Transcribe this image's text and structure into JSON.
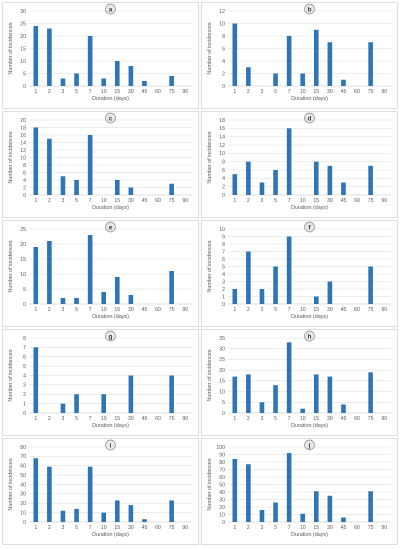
{
  "chart_data": [
    {
      "type": "bar",
      "panel_label": "a",
      "categories": [
        "1",
        "2",
        "3",
        "5",
        "7",
        "10",
        "15",
        "30",
        "45",
        "60",
        "75",
        "90"
      ],
      "values": [
        24,
        23,
        3,
        5,
        20,
        3,
        10,
        8,
        2,
        0,
        4,
        0
      ],
      "ylim": [
        0,
        30
      ],
      "yticks": [
        0,
        5,
        10,
        15,
        20,
        25,
        30
      ],
      "xlabel": "Duration (days)",
      "ylabel": "Number of incidences",
      "color": "#2e75b6"
    },
    {
      "type": "bar",
      "panel_label": "b",
      "categories": [
        "1",
        "2",
        "3",
        "5",
        "7",
        "10",
        "15",
        "30",
        "45",
        "60",
        "75",
        "90"
      ],
      "values": [
        10,
        3,
        0,
        2,
        8,
        2,
        9,
        7,
        1,
        0,
        7,
        0
      ],
      "ylim": [
        0,
        12
      ],
      "yticks": [
        0,
        2,
        4,
        6,
        8,
        10,
        12
      ],
      "xlabel": "Duration (days)",
      "ylabel": "Number of incidences",
      "color": "#2e75b6"
    },
    {
      "type": "bar",
      "panel_label": "c",
      "categories": [
        "1",
        "2",
        "3",
        "5",
        "7",
        "10",
        "15",
        "30",
        "45",
        "60",
        "75",
        "90"
      ],
      "values": [
        18,
        15,
        5,
        4,
        16,
        0,
        4,
        2,
        0,
        0,
        3,
        0
      ],
      "ylim": [
        0,
        20
      ],
      "yticks": [
        0,
        2,
        4,
        6,
        8,
        10,
        12,
        14,
        16,
        18,
        20
      ],
      "xlabel": "Duration (days)",
      "ylabel": "Number of incidences",
      "color": "#2e75b6"
    },
    {
      "type": "bar",
      "panel_label": "d",
      "categories": [
        "1",
        "2",
        "3",
        "5",
        "7",
        "10",
        "15",
        "30",
        "45",
        "60",
        "75",
        "90"
      ],
      "values": [
        5,
        8,
        3,
        6,
        16,
        0,
        8,
        7,
        3,
        0,
        7,
        0
      ],
      "ylim": [
        0,
        18
      ],
      "yticks": [
        0,
        2,
        4,
        6,
        8,
        10,
        12,
        14,
        16,
        18
      ],
      "xlabel": "Duration (days)",
      "ylabel": "Number of incidences",
      "color": "#2e75b6"
    },
    {
      "type": "bar",
      "panel_label": "e",
      "categories": [
        "1",
        "2",
        "3",
        "5",
        "7",
        "10",
        "15",
        "30",
        "45",
        "60",
        "75",
        "90"
      ],
      "values": [
        19,
        21,
        2,
        2,
        23,
        4,
        9,
        3,
        0,
        0,
        11,
        0
      ],
      "ylim": [
        0,
        25
      ],
      "yticks": [
        0,
        5,
        10,
        15,
        20,
        25
      ],
      "xlabel": "Duration (days)",
      "ylabel": "Number of incidences",
      "color": "#2e75b6"
    },
    {
      "type": "bar",
      "panel_label": "f",
      "categories": [
        "1",
        "2",
        "3",
        "5",
        "7",
        "10",
        "15",
        "30",
        "45",
        "60",
        "75",
        "90"
      ],
      "values": [
        2,
        7,
        2,
        5,
        9,
        0,
        1,
        3,
        0,
        0,
        5,
        0
      ],
      "ylim": [
        0,
        10
      ],
      "yticks": [
        0,
        1,
        2,
        3,
        4,
        5,
        6,
        7,
        8,
        9,
        10
      ],
      "xlabel": "Duration (days)",
      "ylabel": "Number of incidences",
      "color": "#2e75b6"
    },
    {
      "type": "bar",
      "panel_label": "g",
      "categories": [
        "1",
        "2",
        "3",
        "5",
        "7",
        "10",
        "15",
        "30",
        "45",
        "60",
        "75",
        "90"
      ],
      "values": [
        7,
        0,
        1,
        2,
        0,
        2,
        0,
        4,
        0,
        0,
        4,
        0
      ],
      "ylim": [
        0,
        8
      ],
      "yticks": [
        0,
        1,
        2,
        3,
        4,
        5,
        6,
        7,
        8
      ],
      "xlabel": "Duration (days)",
      "ylabel": "Number of incidences",
      "color": "#2e75b6"
    },
    {
      "type": "bar",
      "panel_label": "h",
      "categories": [
        "1",
        "2",
        "3",
        "5",
        "7",
        "10",
        "15",
        "30",
        "45",
        "60",
        "75",
        "90"
      ],
      "values": [
        17,
        18,
        5,
        13,
        33,
        2,
        18,
        17,
        4,
        0,
        19,
        0
      ],
      "ylim": [
        0,
        35
      ],
      "yticks": [
        0,
        5,
        10,
        15,
        20,
        25,
        30,
        35
      ],
      "xlabel": "Duration (days)",
      "ylabel": "Number of incidences",
      "color": "#2e75b6"
    },
    {
      "type": "bar",
      "panel_label": "i",
      "categories": [
        "1",
        "2",
        "3",
        "5",
        "7",
        "10",
        "15",
        "30",
        "45",
        "60",
        "75",
        "90"
      ],
      "values": [
        68,
        59,
        12,
        14,
        59,
        10,
        23,
        18,
        3,
        0,
        23,
        0
      ],
      "ylim": [
        0,
        80
      ],
      "yticks": [
        0,
        10,
        20,
        30,
        40,
        50,
        60,
        70,
        80
      ],
      "xlabel": "Duration (days)",
      "ylabel": "Number of incidences",
      "color": "#2e75b6"
    },
    {
      "type": "bar",
      "panel_label": "j",
      "categories": [
        "1",
        "2",
        "3",
        "5",
        "7",
        "10",
        "15",
        "30",
        "45",
        "60",
        "75",
        "90"
      ],
      "values": [
        84,
        77,
        16,
        26,
        92,
        11,
        41,
        35,
        6,
        0,
        41,
        0
      ],
      "ylim": [
        0,
        100
      ],
      "yticks": [
        0,
        10,
        20,
        30,
        40,
        50,
        60,
        70,
        80,
        90,
        100
      ],
      "xlabel": "Duration (days)",
      "ylabel": "Number of incidences",
      "color": "#2e75b6"
    }
  ]
}
